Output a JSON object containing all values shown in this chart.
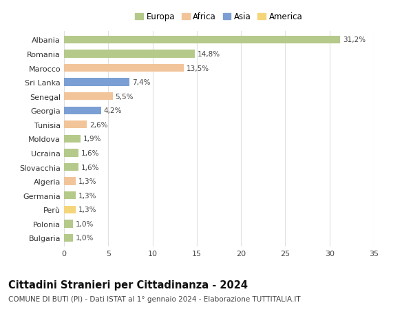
{
  "countries": [
    "Albania",
    "Romania",
    "Marocco",
    "Sri Lanka",
    "Senegal",
    "Georgia",
    "Tunisia",
    "Moldova",
    "Ucraina",
    "Slovacchia",
    "Algeria",
    "Germania",
    "Perù",
    "Polonia",
    "Bulgaria"
  ],
  "values": [
    31.2,
    14.8,
    13.5,
    7.4,
    5.5,
    4.2,
    2.6,
    1.9,
    1.6,
    1.6,
    1.3,
    1.3,
    1.3,
    1.0,
    1.0
  ],
  "labels": [
    "31,2%",
    "14,8%",
    "13,5%",
    "7,4%",
    "5,5%",
    "4,2%",
    "2,6%",
    "1,9%",
    "1,6%",
    "1,6%",
    "1,3%",
    "1,3%",
    "1,3%",
    "1,0%",
    "1,0%"
  ],
  "colors": [
    "#b5c98a",
    "#b5c98a",
    "#f2c499",
    "#7b9fd4",
    "#f2c499",
    "#7b9fd4",
    "#f2c499",
    "#b5c98a",
    "#b5c98a",
    "#b5c98a",
    "#f2c499",
    "#b5c98a",
    "#f5d57a",
    "#b5c98a",
    "#b5c98a"
  ],
  "legend_labels": [
    "Europa",
    "Africa",
    "Asia",
    "America"
  ],
  "legend_colors": [
    "#b5c98a",
    "#f2c499",
    "#7b9fd4",
    "#f5d57a"
  ],
  "title": "Cittadini Stranieri per Cittadinanza - 2024",
  "subtitle": "COMUNE DI BUTI (PI) - Dati ISTAT al 1° gennaio 2024 - Elaborazione TUTTITALIA.IT",
  "xlim": [
    0,
    35
  ],
  "xticks": [
    0,
    5,
    10,
    15,
    20,
    25,
    30,
    35
  ],
  "background_color": "#ffffff",
  "grid_color": "#e0e0e0",
  "bar_height": 0.55,
  "title_fontsize": 10.5,
  "subtitle_fontsize": 7.5,
  "label_fontsize": 7.5,
  "tick_fontsize": 8,
  "legend_fontsize": 8.5
}
